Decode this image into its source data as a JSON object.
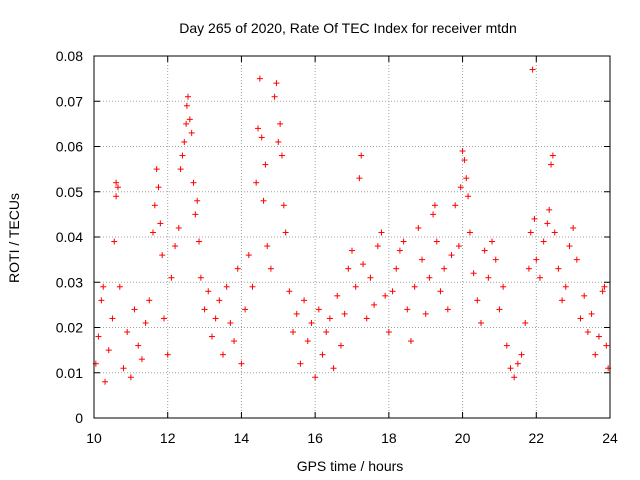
{
  "chart_data": {
    "type": "scatter",
    "title": "Day 265 of 2020, Rate Of TEC Index for receiver mtdn",
    "xlabel": "GPS time / hours",
    "ylabel": "ROTI / TECUs",
    "xlim": [
      10,
      24
    ],
    "ylim": [
      0,
      0.08
    ],
    "x_ticks": [
      10,
      12,
      14,
      16,
      18,
      20,
      22,
      24
    ],
    "x_tick_labels": [
      "10",
      "12",
      "14",
      "16",
      "18",
      "20",
      "22",
      "24"
    ],
    "y_ticks": [
      0,
      0.01,
      0.02,
      0.03,
      0.04,
      0.05,
      0.06,
      0.07,
      0.08
    ],
    "y_tick_labels": [
      "0",
      "0.01",
      "0.02",
      "0.03",
      "0.04",
      "0.05",
      "0.06",
      "0.07",
      "0.08"
    ],
    "grid": true,
    "marker": "+",
    "color": "#ff0000",
    "series": [
      {
        "name": "ROTI",
        "points": [
          [
            10.05,
            0.012
          ],
          [
            10.12,
            0.018
          ],
          [
            10.2,
            0.026
          ],
          [
            10.25,
            0.029
          ],
          [
            10.3,
            0.008
          ],
          [
            10.4,
            0.015
          ],
          [
            10.5,
            0.022
          ],
          [
            10.55,
            0.039
          ],
          [
            10.6,
            0.049
          ],
          [
            10.6,
            0.052
          ],
          [
            10.65,
            0.051
          ],
          [
            10.7,
            0.029
          ],
          [
            10.8,
            0.011
          ],
          [
            10.9,
            0.019
          ],
          [
            11.0,
            0.009
          ],
          [
            11.1,
            0.024
          ],
          [
            11.2,
            0.016
          ],
          [
            11.3,
            0.013
          ],
          [
            11.4,
            0.021
          ],
          [
            11.5,
            0.026
          ],
          [
            11.6,
            0.041
          ],
          [
            11.65,
            0.047
          ],
          [
            11.7,
            0.055
          ],
          [
            11.75,
            0.051
          ],
          [
            11.8,
            0.043
          ],
          [
            11.85,
            0.036
          ],
          [
            11.9,
            0.022
          ],
          [
            12.0,
            0.014
          ],
          [
            12.1,
            0.031
          ],
          [
            12.2,
            0.038
          ],
          [
            12.3,
            0.042
          ],
          [
            12.35,
            0.055
          ],
          [
            12.4,
            0.058
          ],
          [
            12.45,
            0.061
          ],
          [
            12.5,
            0.065
          ],
          [
            12.52,
            0.069
          ],
          [
            12.55,
            0.071
          ],
          [
            12.6,
            0.066
          ],
          [
            12.65,
            0.063
          ],
          [
            12.7,
            0.052
          ],
          [
            12.75,
            0.045
          ],
          [
            12.8,
            0.048
          ],
          [
            12.85,
            0.039
          ],
          [
            12.9,
            0.031
          ],
          [
            13.0,
            0.024
          ],
          [
            13.1,
            0.028
          ],
          [
            13.2,
            0.018
          ],
          [
            13.3,
            0.022
          ],
          [
            13.4,
            0.026
          ],
          [
            13.5,
            0.014
          ],
          [
            13.6,
            0.029
          ],
          [
            13.7,
            0.021
          ],
          [
            13.8,
            0.017
          ],
          [
            13.9,
            0.033
          ],
          [
            14.0,
            0.012
          ],
          [
            14.1,
            0.024
          ],
          [
            14.2,
            0.036
          ],
          [
            14.3,
            0.029
          ],
          [
            14.4,
            0.052
          ],
          [
            14.45,
            0.064
          ],
          [
            14.5,
            0.075
          ],
          [
            14.55,
            0.062
          ],
          [
            14.6,
            0.048
          ],
          [
            14.65,
            0.056
          ],
          [
            14.7,
            0.038
          ],
          [
            14.8,
            0.033
          ],
          [
            14.9,
            0.071
          ],
          [
            14.95,
            0.074
          ],
          [
            15.0,
            0.061
          ],
          [
            15.05,
            0.065
          ],
          [
            15.1,
            0.058
          ],
          [
            15.15,
            0.047
          ],
          [
            15.2,
            0.041
          ],
          [
            15.3,
            0.028
          ],
          [
            15.4,
            0.019
          ],
          [
            15.5,
            0.023
          ],
          [
            15.6,
            0.012
          ],
          [
            15.7,
            0.026
          ],
          [
            15.8,
            0.017
          ],
          [
            15.9,
            0.021
          ],
          [
            16.0,
            0.009
          ],
          [
            16.1,
            0.024
          ],
          [
            16.2,
            0.014
          ],
          [
            16.3,
            0.019
          ],
          [
            16.4,
            0.022
          ],
          [
            16.5,
            0.011
          ],
          [
            16.6,
            0.027
          ],
          [
            16.7,
            0.016
          ],
          [
            16.8,
            0.023
          ],
          [
            16.9,
            0.033
          ],
          [
            17.0,
            0.037
          ],
          [
            17.1,
            0.029
          ],
          [
            17.2,
            0.053
          ],
          [
            17.25,
            0.058
          ],
          [
            17.3,
            0.034
          ],
          [
            17.4,
            0.022
          ],
          [
            17.5,
            0.031
          ],
          [
            17.6,
            0.025
          ],
          [
            17.7,
            0.038
          ],
          [
            17.8,
            0.041
          ],
          [
            17.9,
            0.027
          ],
          [
            18.0,
            0.019
          ],
          [
            18.1,
            0.028
          ],
          [
            18.2,
            0.033
          ],
          [
            18.3,
            0.037
          ],
          [
            18.4,
            0.039
          ],
          [
            18.5,
            0.024
          ],
          [
            18.6,
            0.017
          ],
          [
            18.7,
            0.029
          ],
          [
            18.8,
            0.042
          ],
          [
            18.9,
            0.035
          ],
          [
            19.0,
            0.023
          ],
          [
            19.1,
            0.031
          ],
          [
            19.2,
            0.045
          ],
          [
            19.25,
            0.047
          ],
          [
            19.3,
            0.039
          ],
          [
            19.4,
            0.028
          ],
          [
            19.5,
            0.033
          ],
          [
            19.6,
            0.024
          ],
          [
            19.7,
            0.036
          ],
          [
            19.8,
            0.047
          ],
          [
            19.9,
            0.038
          ],
          [
            19.95,
            0.051
          ],
          [
            20.0,
            0.059
          ],
          [
            20.05,
            0.057
          ],
          [
            20.1,
            0.053
          ],
          [
            20.15,
            0.049
          ],
          [
            20.2,
            0.041
          ],
          [
            20.3,
            0.032
          ],
          [
            20.4,
            0.026
          ],
          [
            20.5,
            0.021
          ],
          [
            20.6,
            0.037
          ],
          [
            20.7,
            0.031
          ],
          [
            20.8,
            0.039
          ],
          [
            20.9,
            0.035
          ],
          [
            21.0,
            0.024
          ],
          [
            21.1,
            0.029
          ],
          [
            21.2,
            0.016
          ],
          [
            21.3,
            0.011
          ],
          [
            21.4,
            0.009
          ],
          [
            21.5,
            0.012
          ],
          [
            21.6,
            0.014
          ],
          [
            21.7,
            0.021
          ],
          [
            21.8,
            0.033
          ],
          [
            21.85,
            0.041
          ],
          [
            21.9,
            0.077
          ],
          [
            21.95,
            0.044
          ],
          [
            22.0,
            0.035
          ],
          [
            22.1,
            0.031
          ],
          [
            22.2,
            0.039
          ],
          [
            22.3,
            0.043
          ],
          [
            22.35,
            0.046
          ],
          [
            22.4,
            0.056
          ],
          [
            22.45,
            0.058
          ],
          [
            22.5,
            0.041
          ],
          [
            22.6,
            0.033
          ],
          [
            22.7,
            0.026
          ],
          [
            22.8,
            0.029
          ],
          [
            22.9,
            0.038
          ],
          [
            23.0,
            0.042
          ],
          [
            23.1,
            0.035
          ],
          [
            23.2,
            0.022
          ],
          [
            23.3,
            0.027
          ],
          [
            23.4,
            0.019
          ],
          [
            23.5,
            0.023
          ],
          [
            23.6,
            0.014
          ],
          [
            23.7,
            0.018
          ],
          [
            23.8,
            0.028
          ],
          [
            23.85,
            0.029
          ],
          [
            23.9,
            0.016
          ],
          [
            23.95,
            0.011
          ]
        ]
      }
    ]
  }
}
